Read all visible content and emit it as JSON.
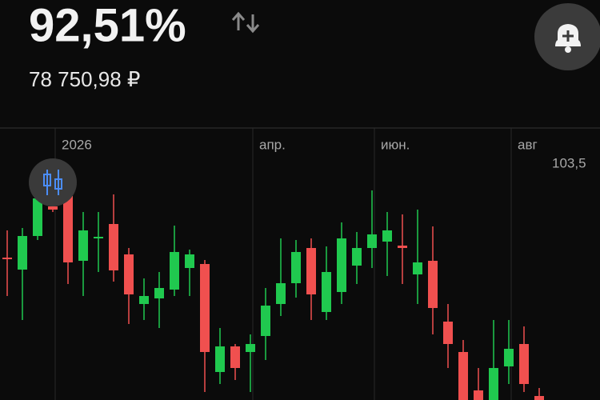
{
  "header": {
    "value": "92,51%",
    "amount": "78 750,98 ₽"
  },
  "chart_data": {
    "type": "candlestick",
    "categories": [
      null,
      null,
      null,
      "2026",
      null,
      null,
      null,
      null,
      null,
      null,
      null,
      null,
      null,
      null,
      null,
      null,
      "апр.",
      null,
      null,
      null,
      null,
      null,
      null,
      null,
      "июн.",
      null,
      null,
      null,
      null,
      null,
      null,
      null,
      null,
      "авг",
      null,
      null
    ],
    "open": [
      98.82,
      98.22,
      99.9,
      101.38,
      101.9,
      98.66,
      99.78,
      100.5,
      98.98,
      96.5,
      96.78,
      97.22,
      98.3,
      98.5,
      93.1,
      94.38,
      94.1,
      94.9,
      96.5,
      97.54,
      99.3,
      96.1,
      97.1,
      98.42,
      99.3,
      99.62,
      99.42,
      97.98,
      98.66,
      95.62,
      94.1,
      92.18,
      91.7,
      93.38,
      94.5,
      91.9
    ],
    "high": [
      100.18,
      100.3,
      102.1,
      101.7,
      102.1,
      101.1,
      101.1,
      101.98,
      99.3,
      97.78,
      98.1,
      100.42,
      99.22,
      98.7,
      95.3,
      94.5,
      94.98,
      97.3,
      99.78,
      99.7,
      99.78,
      99.38,
      100.58,
      100.1,
      102.18,
      101.1,
      100.98,
      101.22,
      100.38,
      96.5,
      94.7,
      93.3,
      95.7,
      95.7,
      95.38,
      92.3
    ],
    "low": [
      96.9,
      95.7,
      99.7,
      101.1,
      97.5,
      96.9,
      98.1,
      97.62,
      95.5,
      95.7,
      95.3,
      96.9,
      96.9,
      92.1,
      92.5,
      92.7,
      92.1,
      93.7,
      95.9,
      96.82,
      95.7,
      95.7,
      96.5,
      97.5,
      98.3,
      97.9,
      97.5,
      96.5,
      94.98,
      93.3,
      91.7,
      91.7,
      91.7,
      92.5,
      92.1,
      91.7
    ],
    "close": [
      98.78,
      99.9,
      101.78,
      101.22,
      98.58,
      100.18,
      99.86,
      98.18,
      96.98,
      96.9,
      97.3,
      99.1,
      98.98,
      94.1,
      94.38,
      93.3,
      94.5,
      96.42,
      97.54,
      99.1,
      96.98,
      98.1,
      99.78,
      99.3,
      99.98,
      100.18,
      99.3,
      98.58,
      96.3,
      94.5,
      91.7,
      91.7,
      93.3,
      94.26,
      92.5,
      91.7
    ],
    "up_color": "#20c94f",
    "down_color": "#f0504f",
    "ylim": [
      91.7,
      105.3
    ],
    "yticks": [
      {
        "value": 103.5,
        "label": "103,5"
      }
    ]
  }
}
